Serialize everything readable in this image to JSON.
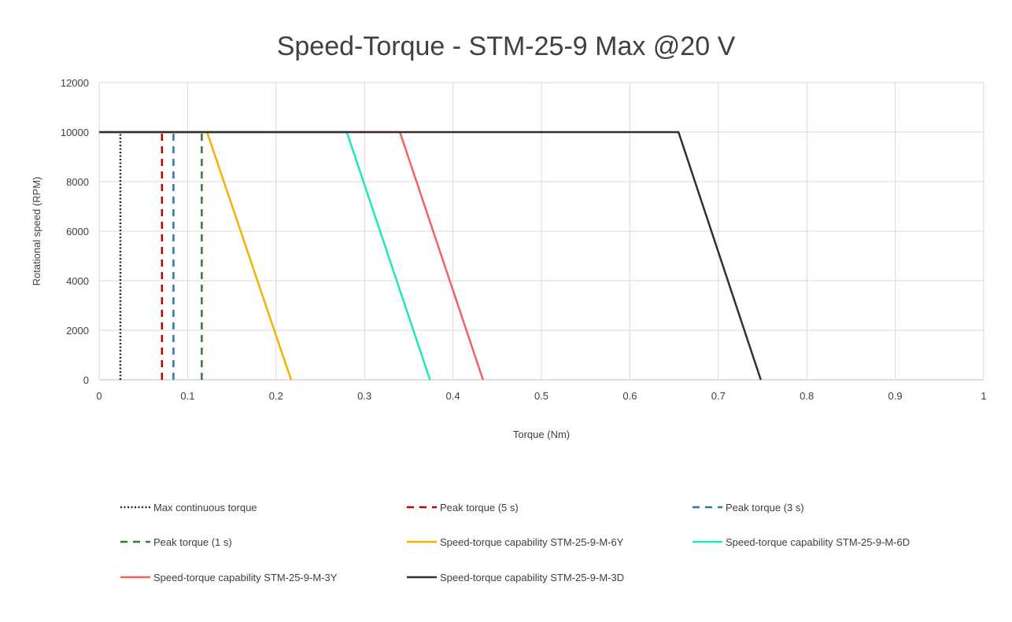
{
  "chart_data": {
    "type": "line",
    "title": "Speed-Torque - STM-25-9 Max @20 V",
    "xlabel": "Torque (Nm)",
    "ylabel": "Rotational speed (RPM)",
    "xlim": [
      0,
      1
    ],
    "ylim": [
      0,
      12000
    ],
    "x_ticks": [
      "0",
      "0.1",
      "0.2",
      "0.3",
      "0.4",
      "0.5",
      "0.6",
      "0.7",
      "0.8",
      "0.9",
      "1"
    ],
    "y_ticks": [
      "0",
      "2000",
      "4000",
      "6000",
      "8000",
      "10000",
      "12000"
    ],
    "grid": true,
    "legend_position": "bottom",
    "series": [
      {
        "name": "Max continuous torque",
        "color": "#262626",
        "dash": "dotted",
        "points": [
          [
            0.024,
            0
          ],
          [
            0.024,
            10000
          ]
        ]
      },
      {
        "name": "Peak torque (5 s)",
        "color": "#c00000",
        "dash": "dashed",
        "points": [
          [
            0.071,
            0
          ],
          [
            0.071,
            10000
          ]
        ]
      },
      {
        "name": "Peak torque (3 s)",
        "color": "#2e75b6",
        "dash": "dashed",
        "points": [
          [
            0.084,
            0
          ],
          [
            0.084,
            10000
          ]
        ]
      },
      {
        "name": "Peak torque (1 s)",
        "color": "#2e7d32",
        "dash": "dashed",
        "points": [
          [
            0.116,
            0
          ],
          [
            0.116,
            10000
          ]
        ]
      },
      {
        "name": "Speed-torque capability STM-25-9-M-6Y",
        "color": "#f0b400",
        "dash": "solid",
        "points": [
          [
            0,
            10000
          ],
          [
            0.122,
            10000
          ],
          [
            0.217,
            0
          ]
        ]
      },
      {
        "name": "Speed-torque capability STM-25-9-M-6D",
        "color": "#1de9b6",
        "dash": "solid",
        "points": [
          [
            0,
            10000
          ],
          [
            0.28,
            10000
          ],
          [
            0.374,
            0
          ]
        ]
      },
      {
        "name": "Speed-torque capability STM-25-9-M-3Y",
        "color": "#f4625a",
        "dash": "solid",
        "points": [
          [
            0,
            10000
          ],
          [
            0.34,
            10000
          ],
          [
            0.434,
            0
          ]
        ]
      },
      {
        "name": "Speed-torque capability STM-25-9-M-3D",
        "color": "#303030",
        "dash": "solid",
        "points": [
          [
            0,
            10000
          ],
          [
            0.655,
            10000
          ],
          [
            0.748,
            0
          ]
        ]
      }
    ]
  }
}
